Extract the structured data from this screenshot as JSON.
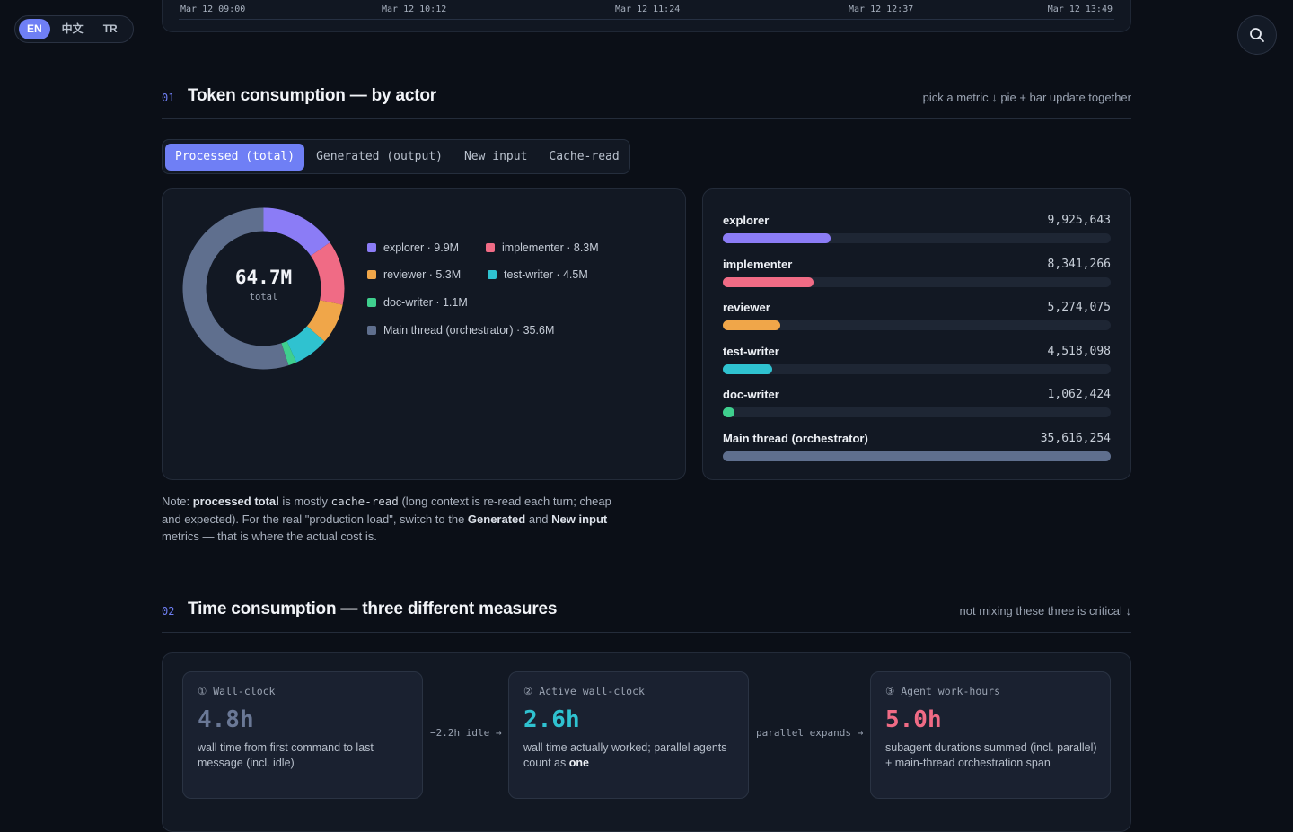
{
  "language_switch": {
    "options": [
      "EN",
      "中文",
      "TR"
    ],
    "active": "EN"
  },
  "timeline": {
    "ticks": [
      "Mar 12 09:00",
      "Mar 12 10:12",
      "Mar 12 11:24",
      "Mar 12 12:37",
      "Mar 12 13:49"
    ]
  },
  "section1": {
    "number": "01",
    "title": "Token consumption — by actor",
    "hint": "pick a metric ↓ pie + bar update together",
    "tabs": [
      "Processed (total)",
      "Generated (output)",
      "New input",
      "Cache-read"
    ],
    "active_tab": "Processed (total)",
    "donut": {
      "center_value": "64.7M",
      "center_label": "total"
    },
    "legend": [
      "explorer · 9.9M",
      "implementer · 8.3M",
      "reviewer · 5.3M",
      "test-writer · 4.5M",
      "doc-writer · 1.1M",
      "Main thread (orchestrator) · 35.6M"
    ],
    "bars": [
      {
        "name": "explorer",
        "value_label": "9,925,643"
      },
      {
        "name": "implementer",
        "value_label": "8,341,266"
      },
      {
        "name": "reviewer",
        "value_label": "5,274,075"
      },
      {
        "name": "test-writer",
        "value_label": "4,518,098"
      },
      {
        "name": "doc-writer",
        "value_label": "1,062,424"
      },
      {
        "name": "Main thread (orchestrator)",
        "value_label": "35,616,254"
      }
    ],
    "note": {
      "p1": "Note: ",
      "b1": "processed total",
      "p2": " is mostly ",
      "code": "cache-read",
      "p3": " (long context is re-read each turn; cheap and expected). For the real \"production load\", switch to the ",
      "b2": "Generated",
      "p4": " and ",
      "b3": "New input",
      "p5": " metrics — that is where the actual cost is."
    }
  },
  "chart_data": {
    "type": "pie",
    "categories": [
      "explorer",
      "implementer",
      "reviewer",
      "test-writer",
      "doc-writer",
      "Main thread (orchestrator)"
    ],
    "values": [
      9925643,
      8341266,
      5274075,
      4518098,
      1062424,
      35616254
    ],
    "colors": [
      "#8b7cf6",
      "#f06b85",
      "#f0a649",
      "#2fc2d0",
      "#3fcf8e",
      "#5f6f8e"
    ],
    "legend": "right"
  },
  "section2": {
    "number": "02",
    "title": "Time consumption — three different measures",
    "hint": "not mixing these three is critical ↓",
    "boxes": [
      {
        "label": "① Wall-clock",
        "value": "4.8h",
        "desc": "wall time from first command to last message (incl. idle)",
        "color": "#6a7896"
      },
      {
        "label": "② Active wall-clock",
        "value": "2.6h",
        "desc_pre": "wall time actually worked; parallel agents count as ",
        "desc_bold": "one",
        "color": "#2fc2d0"
      },
      {
        "label": "③ Agent work-hours",
        "value": "5.0h",
        "desc": "subagent durations summed (incl. parallel) + main-thread orchestration span",
        "color": "#f06b85"
      }
    ],
    "connectors": [
      "−2.2h idle →",
      "parallel expands →"
    ]
  }
}
